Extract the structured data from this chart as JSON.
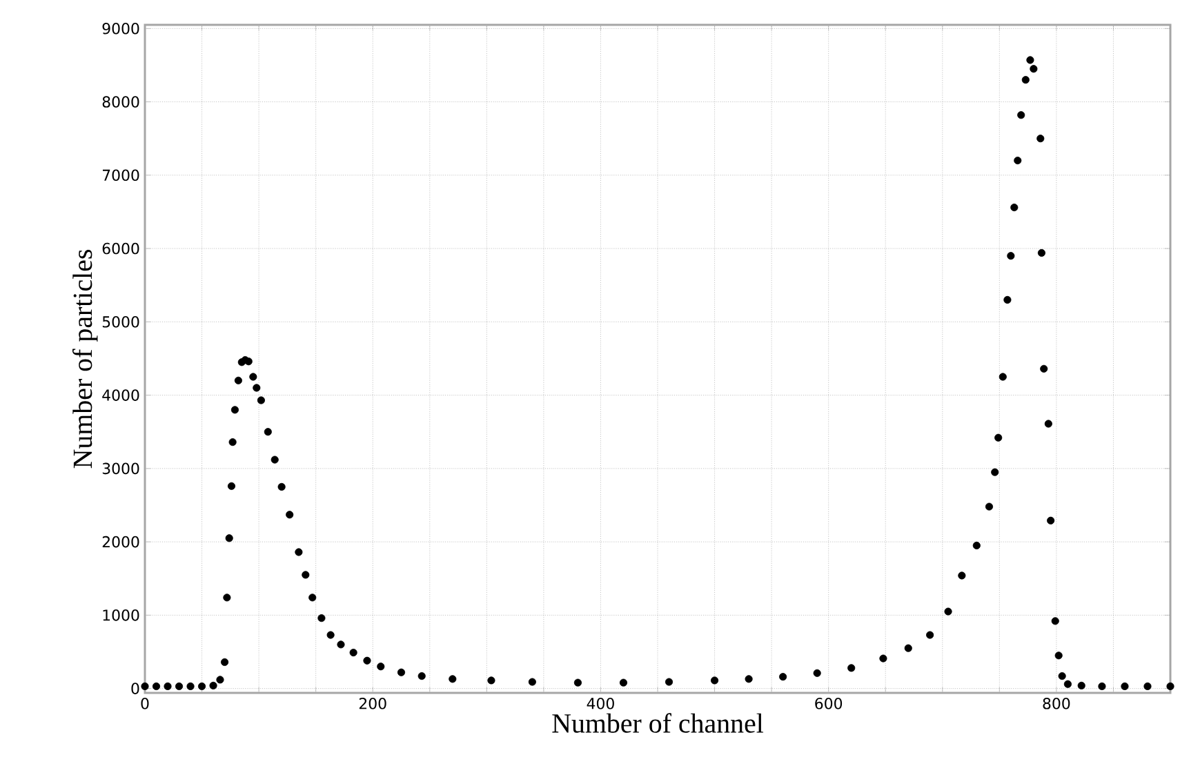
{
  "chart_data": {
    "type": "scatter",
    "xlabel": "Number of channel",
    "ylabel": "Number of particles",
    "series": [
      {
        "color": "#000000",
        "x": [
          0,
          10,
          20,
          30,
          40,
          50,
          60,
          66,
          70,
          72,
          74,
          76,
          77,
          79,
          82,
          85,
          88,
          91,
          95,
          98,
          102,
          108,
          114,
          120,
          127,
          135,
          141,
          147,
          155,
          163,
          172,
          183,
          195,
          207,
          225,
          243,
          270,
          304,
          340,
          380,
          420,
          460,
          500,
          530,
          560,
          590,
          620,
          648,
          670,
          689,
          705,
          717,
          730,
          741,
          746,
          749,
          753,
          757,
          760,
          763,
          766,
          769,
          773,
          777,
          780,
          786,
          787,
          789,
          793,
          795,
          799,
          802,
          805,
          810,
          822,
          840,
          860,
          880,
          900
        ],
        "values": [
          30,
          30,
          30,
          30,
          30,
          30,
          40,
          120,
          360,
          1240,
          2050,
          2760,
          3360,
          3800,
          4200,
          4450,
          4480,
          4460,
          4250,
          4100,
          3930,
          3500,
          3120,
          2750,
          2370,
          1860,
          1550,
          1240,
          960,
          730,
          600,
          490,
          380,
          300,
          220,
          170,
          130,
          110,
          90,
          80,
          80,
          90,
          110,
          130,
          160,
          210,
          280,
          410,
          550,
          730,
          1050,
          1540,
          1950,
          2480,
          2950,
          3420,
          4250,
          5300,
          5900,
          6560,
          7200,
          7820,
          8300,
          8570,
          8450,
          7500,
          5940,
          4360,
          3610,
          2290,
          920,
          450,
          170,
          60,
          40,
          30,
          30,
          30,
          30
        ]
      }
    ],
    "xlim": [
      0,
      900
    ],
    "ylim": [
      -60,
      9050
    ],
    "xticks": [
      0,
      {
        "value": 50,
        "label": null
      },
      {
        "value": 100,
        "label": null
      },
      {
        "value": 150,
        "label": null
      },
      200,
      {
        "value": 250,
        "label": null
      },
      {
        "value": 300,
        "label": null
      },
      {
        "value": 350,
        "label": null
      },
      400,
      {
        "value": 450,
        "label": null
      },
      {
        "value": 500,
        "label": null
      },
      {
        "value": 550,
        "label": null
      },
      600,
      {
        "value": 650,
        "label": null
      },
      {
        "value": 700,
        "label": null
      },
      {
        "value": 750,
        "label": null
      },
      800,
      {
        "value": 850,
        "label": null
      },
      {
        "value": 900,
        "label": null
      }
    ],
    "yticks": [
      0,
      1000,
      2000,
      3000,
      4000,
      5000,
      6000,
      7000,
      8000,
      9000
    ],
    "grid": true,
    "marker": "circle"
  }
}
